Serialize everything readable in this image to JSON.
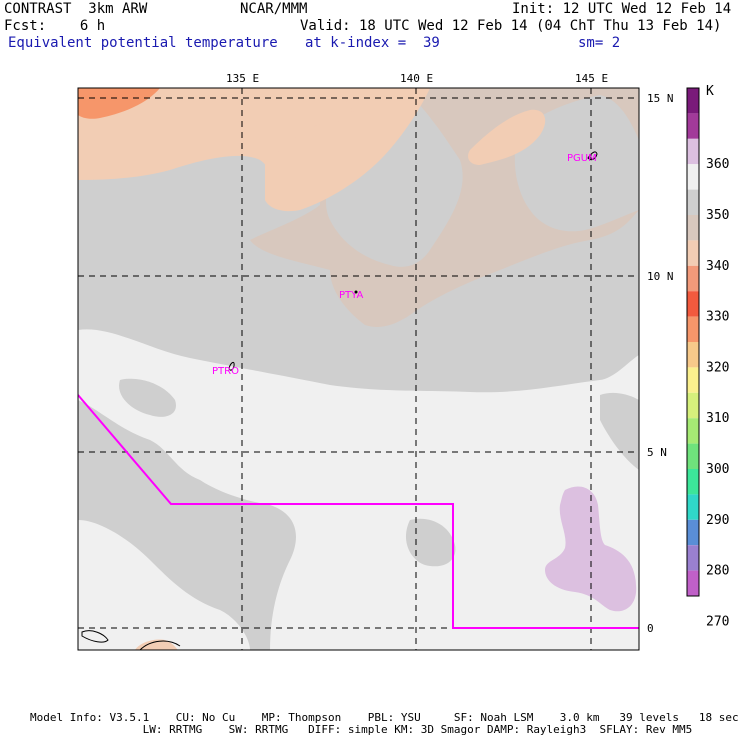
{
  "header": {
    "model": "CONTRAST  3km ARW",
    "center": "NCAR/MMM",
    "init": "Init: 12 UTC Wed 12 Feb 14",
    "fcst": "Fcst:    6 h",
    "valid": "Valid: 18 UTC Wed 12 Feb 14 (04 ChT Thu 13 Feb 14)",
    "field": "Equivalent potential temperature",
    "level": "at k-index =  39",
    "smoothing": "sm= 2"
  },
  "map": {
    "lon_labels": [
      "135 E",
      "140 E",
      "145 E"
    ],
    "lat_labels": [
      "15 N",
      "10 N",
      "5 N",
      "0"
    ],
    "stations": [
      {
        "id": "PGUM"
      },
      {
        "id": "PTYA"
      },
      {
        "id": "PTRO"
      }
    ]
  },
  "colorbar": {
    "unit": "K",
    "colors": [
      "#7a1a7a",
      "#a23a9a",
      "#dcc0e0",
      "#f0f0f0",
      "#cfcfcf",
      "#d8c8be",
      "#f2cdb4",
      "#f29a7a",
      "#f25a3e",
      "#f6966a",
      "#f7c98a",
      "#fbf08e",
      "#d6f07c",
      "#a6ea74",
      "#6fe27c",
      "#3ce69a",
      "#30d8c8",
      "#5a8ed6",
      "#9a80d0",
      "#c060c8"
    ],
    "tick_labels": [
      "360",
      "350",
      "340",
      "330",
      "320",
      "310",
      "300",
      "290",
      "280",
      "270"
    ]
  },
  "footer": {
    "line1": "Model Info: V3.5.1    CU: No Cu    MP: Thompson    PBL: YSU     SF: Noah LSM    3.0 km   39 levels   18 sec",
    "line2": "                 LW: RRTMG    SW: RRTMG   DIFF: simple KM: 3D Smagor DAMP: Rayleigh3  SFLAY: Rev MM5"
  }
}
